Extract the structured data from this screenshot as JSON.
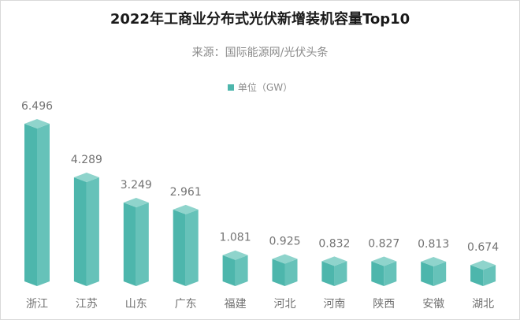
{
  "chart_data": {
    "type": "bar",
    "title": "2022年工商业分布式光伏新增装机容量Top10",
    "subtitle": "来源：国际能源网/光伏头条",
    "legend": {
      "label": "单位（GW）",
      "placement": "top"
    },
    "categories": [
      "浙江",
      "江苏",
      "山东",
      "广东",
      "福建",
      "河北",
      "河南",
      "陕西",
      "安徽",
      "湖北"
    ],
    "values": [
      6.496,
      4.289,
      3.249,
      2.961,
      1.081,
      0.925,
      0.832,
      0.827,
      0.813,
      0.674
    ],
    "value_labels": [
      "6.496",
      "4.289",
      "3.249",
      "2.961",
      "1.081",
      "0.925",
      "0.832",
      "0.827",
      "0.813",
      "0.674"
    ],
    "ylim": [
      0,
      6.5
    ],
    "grid": false,
    "style": "3d-prism",
    "colors": {
      "left": "#4db6ac",
      "right": "#66c2b9",
      "top": "#8fd4cc"
    }
  }
}
